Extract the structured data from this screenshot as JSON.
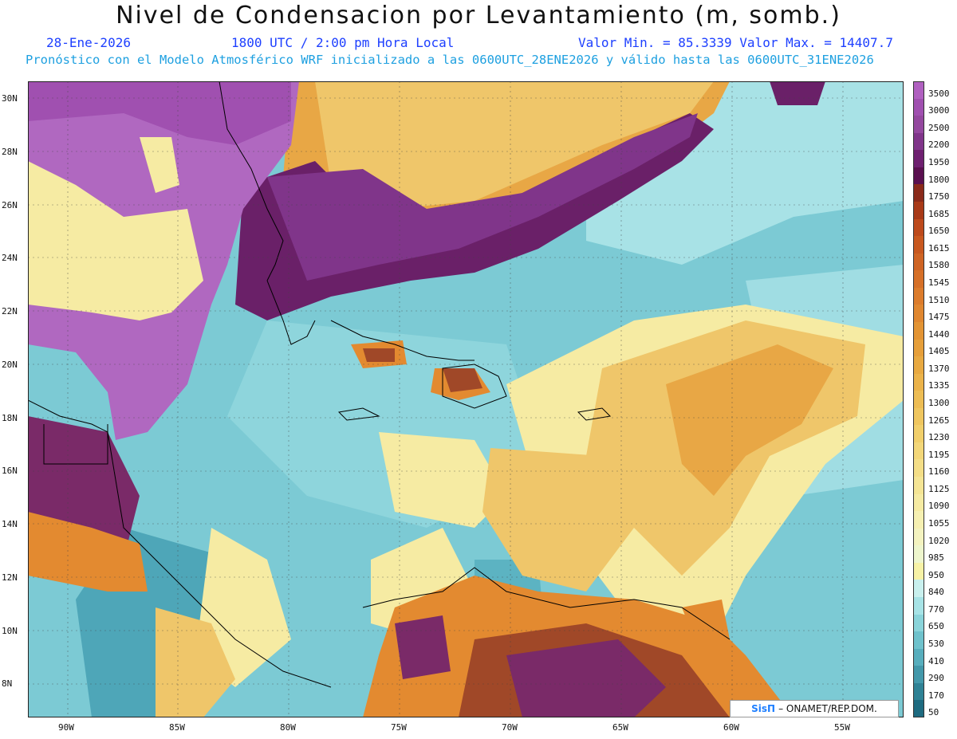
{
  "title": "Nivel de Condensacion por Levantamiento (m, somb.)",
  "header": {
    "date": "28-Ene-2026",
    "time": "1800 UTC / 2:00 pm Hora Local",
    "minmax": "Valor Min. = 85.3339  Valor Max. = 14407.7",
    "model_line": "Pronóstico con el Modelo Atmosférico WRF inicializado a las 0600UTC_28ENE2026 y válido hasta las  0600UTC_31ENE2026"
  },
  "lat_labels": [
    "30N",
    "28N",
    "26N",
    "24N",
    "22N",
    "20N",
    "18N",
    "16N",
    "14N",
    "12N",
    "10N",
    "8N"
  ],
  "lon_labels": [
    "90W",
    "85W",
    "80W",
    "75W",
    "70W",
    "65W",
    "60W",
    "55W"
  ],
  "colorbar": {
    "levels": [
      "3500",
      "3000",
      "2500",
      "2200",
      "1950",
      "1800",
      "1750",
      "1685",
      "1650",
      "1615",
      "1580",
      "1545",
      "1510",
      "1475",
      "1440",
      "1405",
      "1370",
      "1335",
      "1300",
      "1265",
      "1230",
      "1195",
      "1160",
      "1125",
      "1090",
      "1055",
      "1020",
      "985",
      "950",
      "840",
      "770",
      "650",
      "530",
      "410",
      "290",
      "170",
      "50"
    ],
    "colors": [
      "#b060c0",
      "#a050b0",
      "#94489f",
      "#80358a",
      "#6e2070",
      "#5a1050",
      "#8a2a1a",
      "#a83a18",
      "#bd4a1c",
      "#c8581f",
      "#cf6424",
      "#d67028",
      "#dc7c2c",
      "#e08730",
      "#e39434",
      "#e69f3a",
      "#e8a941",
      "#ebb34a",
      "#edbd54",
      "#efc65f",
      "#f1cf6b",
      "#f3d779",
      "#f4de87",
      "#f5e595",
      "#f6eba3",
      "#f6f0b2",
      "#f4f3c0",
      "#eef6cd",
      "#f7f2a6",
      "#c9f0ee",
      "#a7e3e6",
      "#8ad4da",
      "#6fc2cc",
      "#58aebd",
      "#4398aa",
      "#2f8295",
      "#1e6b80"
    ]
  },
  "credit": {
    "brand": "SisΠ",
    "text": "– ONAMET/REP.DOM."
  },
  "colors": {
    "land_purple": "#b068c0",
    "dark_purple": "#6a2068",
    "orange": "#e38a30",
    "yellow": "#f7efa0",
    "light_teal": "#a8e2e6",
    "teal": "#6ec2cc",
    "dark_teal": "#3d8fa5"
  }
}
